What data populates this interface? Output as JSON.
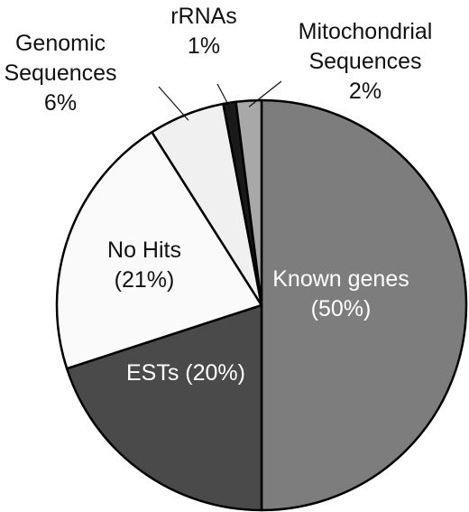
{
  "chart_data": {
    "type": "pie",
    "slices": [
      {
        "label_lines": [
          "Known genes",
          "(50%)"
        ],
        "value": 50,
        "color": "#7d7d7d",
        "label_style": "in-dark"
      },
      {
        "label_lines": [
          "ESTs (20%)"
        ],
        "value": 20,
        "color": "#4a4a4a",
        "label_style": "in-dark"
      },
      {
        "label_lines": [
          "No Hits",
          "(21%)"
        ],
        "value": 21,
        "color": "#fafafa",
        "label_style": "in-light"
      },
      {
        "label_lines": [
          "Genomic",
          "Sequences",
          "6%"
        ],
        "value": 6,
        "color": "#f0f0f0",
        "label_style": "outside"
      },
      {
        "label_lines": [
          "rRNAs",
          "1%"
        ],
        "value": 1,
        "color": "#1a1a1a",
        "label_style": "outside"
      },
      {
        "label_lines": [
          "Mitochondrial",
          "Sequences",
          "2%"
        ],
        "value": 2,
        "color": "#a8a8a8",
        "label_style": "outside"
      }
    ]
  }
}
